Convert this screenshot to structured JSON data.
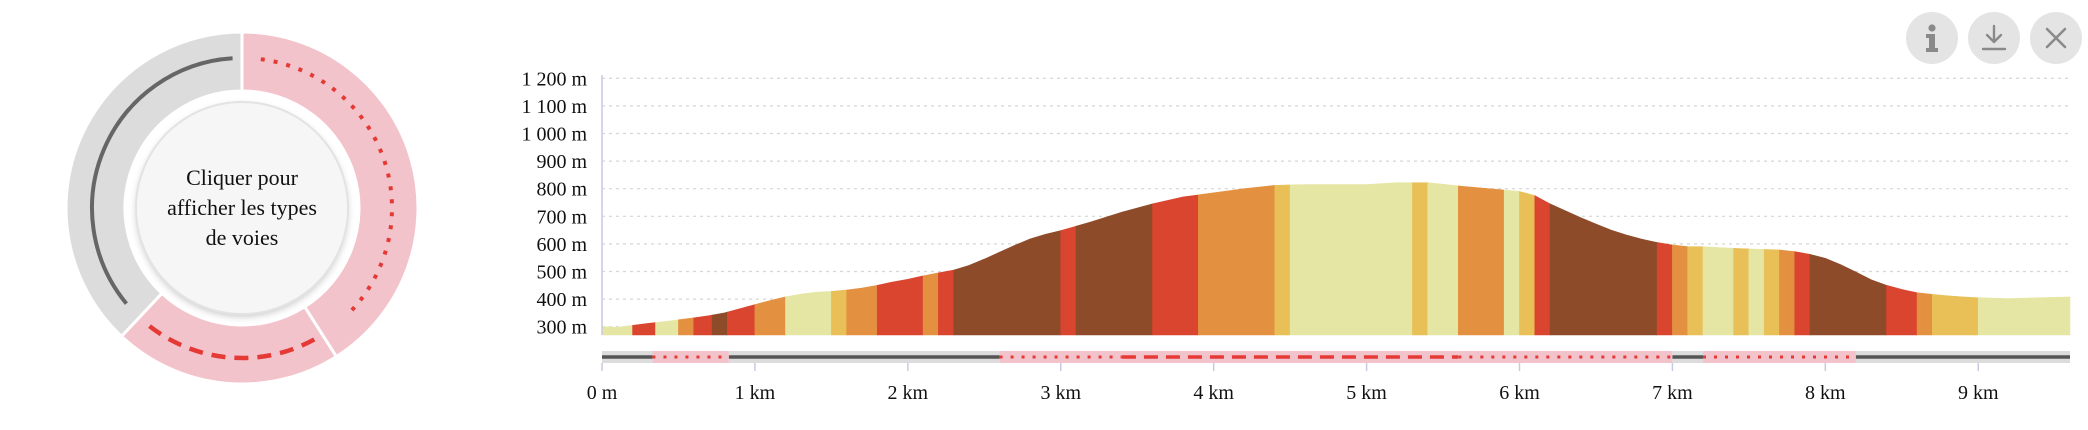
{
  "donut": {
    "center_label": "Cliquer pour afficher les types de voies",
    "outer_ring": [
      {
        "from": 0.0,
        "to": 0.41,
        "color": "#f3c3cb"
      },
      {
        "from": 0.41,
        "to": 0.62,
        "color": "#f3c3cb"
      },
      {
        "from": 0.62,
        "to": 1.0,
        "color": "#dcdcdc"
      }
    ],
    "inner_tracks": [
      {
        "from": 0.02,
        "to": 0.37,
        "style": "dotted",
        "color": "#e53935"
      },
      {
        "from": 0.42,
        "to": 0.61,
        "style": "dashed",
        "color": "#e53935"
      },
      {
        "from": 0.64,
        "to": 0.99,
        "style": "solid",
        "color": "#666666"
      }
    ]
  },
  "controls": {
    "info_icon": "info-icon",
    "download_icon": "download-icon",
    "close_icon": "close-icon"
  },
  "chart_data": {
    "type": "area",
    "title": "",
    "xlabel": "",
    "ylabel": "",
    "xlim": [
      0,
      9.6
    ],
    "ylim": [
      270,
      1230
    ],
    "y_ticks": [
      300,
      400,
      500,
      600,
      700,
      800,
      900,
      1000,
      1100,
      1200
    ],
    "y_tick_labels": [
      "300 m",
      "400 m",
      "500 m",
      "600 m",
      "700 m",
      "800 m",
      "900 m",
      "1 000 m",
      "1 100 m",
      "1 200 m"
    ],
    "x_ticks": [
      0,
      1,
      2,
      3,
      4,
      5,
      6,
      7,
      8,
      9
    ],
    "x_tick_labels": [
      "0 m",
      "1 km",
      "2 km",
      "3 km",
      "4 km",
      "5 km",
      "6 km",
      "7 km",
      "8 km",
      "9 km"
    ],
    "grid": true,
    "profile": {
      "x": [
        0,
        0.1,
        0.2,
        0.3,
        0.4,
        0.5,
        0.6,
        0.7,
        0.8,
        0.9,
        1.0,
        1.1,
        1.2,
        1.3,
        1.4,
        1.5,
        1.6,
        1.7,
        1.8,
        1.9,
        2.0,
        2.1,
        2.2,
        2.3,
        2.4,
        2.5,
        2.6,
        2.7,
        2.8,
        2.9,
        3.0,
        3.2,
        3.4,
        3.6,
        3.8,
        4.0,
        4.2,
        4.4,
        4.6,
        4.8,
        5.0,
        5.2,
        5.4,
        5.6,
        5.8,
        6.0,
        6.1,
        6.2,
        6.3,
        6.4,
        6.5,
        6.6,
        6.7,
        6.8,
        6.9,
        7.0,
        7.1,
        7.2,
        7.3,
        7.4,
        7.5,
        7.6,
        7.7,
        7.8,
        7.9,
        8.0,
        8.1,
        8.2,
        8.3,
        8.4,
        8.5,
        8.6,
        8.7,
        8.8,
        8.9,
        9.0,
        9.2,
        9.4,
        9.6
      ],
      "elevation": [
        300,
        298,
        305,
        312,
        318,
        325,
        332,
        340,
        350,
        365,
        380,
        395,
        408,
        418,
        425,
        428,
        433,
        440,
        450,
        462,
        472,
        484,
        495,
        505,
        522,
        545,
        570,
        595,
        618,
        635,
        648,
        680,
        715,
        745,
        770,
        785,
        800,
        812,
        815,
        815,
        815,
        822,
        822,
        810,
        800,
        790,
        775,
        745,
        720,
        695,
        672,
        650,
        632,
        617,
        605,
        596,
        590,
        590,
        587,
        584,
        582,
        580,
        578,
        572,
        562,
        548,
        525,
        498,
        470,
        450,
        435,
        423,
        417,
        412,
        408,
        405,
        402,
        405,
        408
      ]
    },
    "grade_segments": [
      {
        "from": 0.0,
        "to": 0.2,
        "color": "#e6e6a4"
      },
      {
        "from": 0.2,
        "to": 0.35,
        "color": "#d9452f"
      },
      {
        "from": 0.35,
        "to": 0.5,
        "color": "#e6e6a4"
      },
      {
        "from": 0.5,
        "to": 0.6,
        "color": "#e39140"
      },
      {
        "from": 0.6,
        "to": 0.72,
        "color": "#d9452f"
      },
      {
        "from": 0.72,
        "to": 0.82,
        "color": "#8e4b2a"
      },
      {
        "from": 0.82,
        "to": 1.0,
        "color": "#d9452f"
      },
      {
        "from": 1.0,
        "to": 1.2,
        "color": "#e39140"
      },
      {
        "from": 1.2,
        "to": 1.5,
        "color": "#e6e6a4"
      },
      {
        "from": 1.5,
        "to": 1.6,
        "color": "#e9c058"
      },
      {
        "from": 1.6,
        "to": 1.8,
        "color": "#e39140"
      },
      {
        "from": 1.8,
        "to": 2.1,
        "color": "#d9452f"
      },
      {
        "from": 2.1,
        "to": 2.2,
        "color": "#e39140"
      },
      {
        "from": 2.2,
        "to": 2.3,
        "color": "#d9452f"
      },
      {
        "from": 2.3,
        "to": 3.0,
        "color": "#8e4b2a"
      },
      {
        "from": 3.0,
        "to": 3.1,
        "color": "#d9452f"
      },
      {
        "from": 3.1,
        "to": 3.6,
        "color": "#8e4b2a"
      },
      {
        "from": 3.6,
        "to": 3.9,
        "color": "#d9452f"
      },
      {
        "from": 3.9,
        "to": 4.4,
        "color": "#e39140"
      },
      {
        "from": 4.4,
        "to": 4.5,
        "color": "#e9c058"
      },
      {
        "from": 4.5,
        "to": 5.3,
        "color": "#e6e6a4"
      },
      {
        "from": 5.3,
        "to": 5.4,
        "color": "#e9c058"
      },
      {
        "from": 5.4,
        "to": 5.6,
        "color": "#e6e6a4"
      },
      {
        "from": 5.6,
        "to": 5.9,
        "color": "#e39140"
      },
      {
        "from": 5.9,
        "to": 6.0,
        "color": "#e6e6a4"
      },
      {
        "from": 6.0,
        "to": 6.1,
        "color": "#e9c058"
      },
      {
        "from": 6.1,
        "to": 6.2,
        "color": "#d9452f"
      },
      {
        "from": 6.2,
        "to": 6.9,
        "color": "#8e4b2a"
      },
      {
        "from": 6.9,
        "to": 7.0,
        "color": "#d9452f"
      },
      {
        "from": 7.0,
        "to": 7.1,
        "color": "#e39140"
      },
      {
        "from": 7.1,
        "to": 7.2,
        "color": "#e9c058"
      },
      {
        "from": 7.2,
        "to": 7.4,
        "color": "#e6e6a4"
      },
      {
        "from": 7.4,
        "to": 7.5,
        "color": "#e9c058"
      },
      {
        "from": 7.5,
        "to": 7.6,
        "color": "#e6e6a4"
      },
      {
        "from": 7.6,
        "to": 7.7,
        "color": "#e9c058"
      },
      {
        "from": 7.7,
        "to": 7.8,
        "color": "#e39140"
      },
      {
        "from": 7.8,
        "to": 7.9,
        "color": "#d9452f"
      },
      {
        "from": 7.9,
        "to": 8.4,
        "color": "#8e4b2a"
      },
      {
        "from": 8.4,
        "to": 8.6,
        "color": "#d9452f"
      },
      {
        "from": 8.6,
        "to": 8.7,
        "color": "#e39140"
      },
      {
        "from": 8.7,
        "to": 9.0,
        "color": "#e9c058"
      },
      {
        "from": 9.0,
        "to": 9.6,
        "color": "#e6e6a4"
      }
    ],
    "track_segments": [
      {
        "from": 0.0,
        "to": 0.33,
        "style": "solid",
        "bg": "#dcdcdc",
        "color": "#555555"
      },
      {
        "from": 0.33,
        "to": 0.83,
        "style": "dotted",
        "bg": "#f3c3cb",
        "color": "#e53935"
      },
      {
        "from": 0.83,
        "to": 2.6,
        "style": "solid",
        "bg": "#dcdcdc",
        "color": "#555555"
      },
      {
        "from": 2.6,
        "to": 3.4,
        "style": "dotted",
        "bg": "#f3c3cb",
        "color": "#e53935"
      },
      {
        "from": 3.4,
        "to": 5.6,
        "style": "dashed",
        "bg": "#f3c3cb",
        "color": "#e53935"
      },
      {
        "from": 5.6,
        "to": 7.0,
        "style": "dotted",
        "bg": "#f3c3cb",
        "color": "#e53935"
      },
      {
        "from": 7.0,
        "to": 7.2,
        "style": "solid",
        "bg": "#dcdcdc",
        "color": "#555555"
      },
      {
        "from": 7.2,
        "to": 8.2,
        "style": "dotted",
        "bg": "#f3c3cb",
        "color": "#e53935"
      },
      {
        "from": 8.2,
        "to": 9.6,
        "style": "solid",
        "bg": "#dcdcdc",
        "color": "#555555"
      }
    ]
  }
}
